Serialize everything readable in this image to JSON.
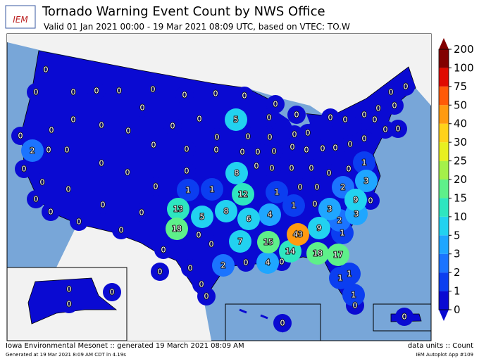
{
  "header": {
    "logo": "IEM",
    "title": "Tornado Warning Event Count by NWS Office",
    "subtitle": "Valid 01 Jan 2021 00:00 - 19 Mar 2021 08:09 UTC, based on VTEC: TO.W"
  },
  "colorbar": {
    "ticks": [
      0,
      1,
      2,
      3,
      5,
      10,
      15,
      20,
      25,
      30,
      40,
      50,
      75,
      100,
      200
    ],
    "colors": [
      "#0a0ad2",
      "#0b3ef0",
      "#1b74ff",
      "#1fa6ff",
      "#22d2f0",
      "#2ee6c0",
      "#5ef08a",
      "#a4f04a",
      "#e8f020",
      "#ffd21a",
      "#ff9a10",
      "#ff5a08",
      "#e00a00",
      "#820000"
    ]
  },
  "offices": {
    "counts": [
      0,
      0,
      0,
      0,
      0,
      0,
      0,
      0,
      0,
      0,
      0,
      0,
      0,
      0,
      5,
      0,
      0,
      0,
      0,
      0,
      0,
      0,
      0,
      0,
      0,
      0,
      0,
      0,
      0,
      0,
      0,
      0,
      0,
      0,
      2,
      0,
      0,
      0,
      0,
      0,
      0,
      0,
      0,
      0,
      0,
      0,
      0,
      0,
      0,
      0,
      0,
      0,
      0,
      0,
      0,
      8,
      0,
      0,
      0,
      0,
      0,
      0,
      1,
      3,
      0,
      0,
      0,
      1,
      1,
      12,
      1,
      0,
      0,
      2,
      0,
      0,
      13,
      5,
      8,
      6,
      4,
      1,
      0,
      3,
      9,
      0,
      3,
      2,
      0,
      0,
      0,
      0,
      18,
      0,
      7,
      15,
      43,
      9,
      1,
      0,
      0,
      14,
      18,
      17,
      2,
      0,
      4,
      0,
      0,
      0,
      0,
      0,
      1,
      1,
      1,
      0,
      0,
      0,
      0,
      0,
      0
    ]
  },
  "footer": {
    "left": "Iowa Environmental Mesonet :: generated 19 March 2021 08:09 AM",
    "left_small": "Generated at 19 Mar 2021 8:09 AM CDT in 4.19s",
    "right": "data units :: Count",
    "right_small": "IEM Autoplot App #109"
  }
}
